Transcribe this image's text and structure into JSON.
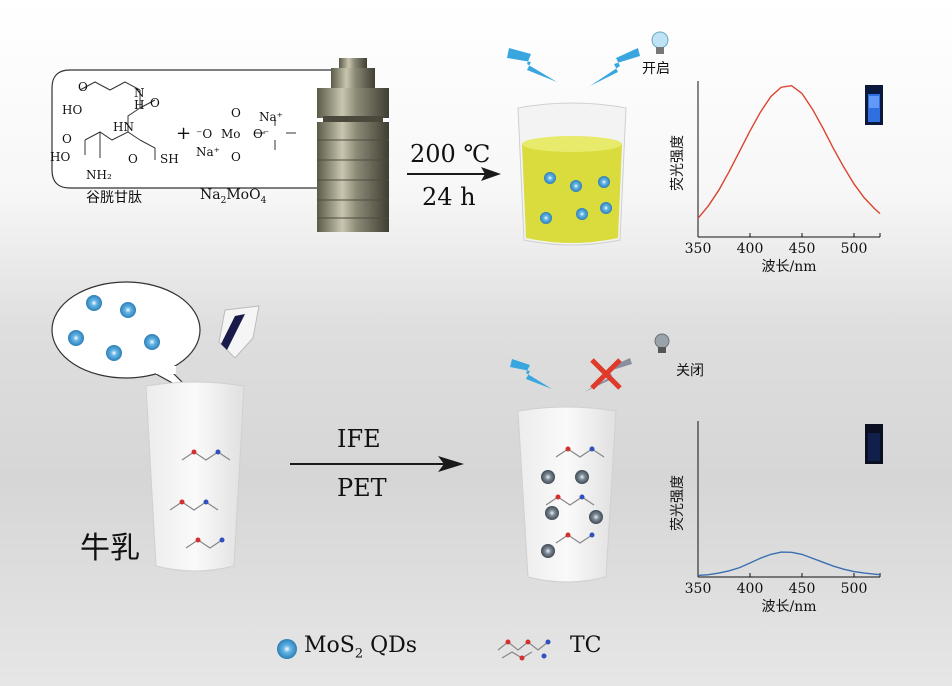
{
  "reaction": {
    "peptide_name": "谷胱甘肽",
    "salt_name": "Na2MoO4",
    "salt_name_main": "Na",
    "salt_sub1": "2",
    "salt_mid": "MoO",
    "salt_sub2": "4",
    "chem_labels": {
      "ho_top": "HO",
      "o_top": "O",
      "n1": "N",
      "h1": "H",
      "o_mid": "O",
      "hn": "HN",
      "ho_bottom": "HO",
      "o_bottom": "O",
      "o_right": "O",
      "sh": "SH",
      "nh2": "NH₂",
      "plus": "+",
      "mo_o1": "⁻O",
      "mo": "Mo",
      "mo_o2": "O⁻",
      "mo_o_top": "O",
      "mo_o_bottom": "O",
      "na_top": "Na⁺",
      "na_bottom": "Na⁺"
    },
    "temperature": "200 ℃",
    "duration": "24 h"
  },
  "top_panel": {
    "lamp_label": "开启"
  },
  "bottom_panel": {
    "lamp_label": "关闭",
    "sample_label": "牛乳",
    "mechanism_1": "IFE",
    "mechanism_2": "PET"
  },
  "legend": {
    "qd_label_main": "MoS",
    "qd_label_sub": "2",
    "qd_label_tail": " QDs",
    "tc_label": "TC"
  },
  "chart_data": [
    {
      "type": "line",
      "ylabel": "荧光强度",
      "xlabel": "波长/nm",
      "xticks": [
        "350",
        "400",
        "450",
        "500"
      ],
      "xlim": [
        350,
        525
      ],
      "ylim": [
        0,
        1
      ],
      "series": [
        {
          "color": "#d9442f",
          "x": [
            350,
            360,
            370,
            380,
            390,
            400,
            410,
            420,
            430,
            440,
            450,
            460,
            470,
            480,
            490,
            500,
            510,
            520,
            525
          ],
          "y": [
            0.12,
            0.2,
            0.3,
            0.42,
            0.55,
            0.68,
            0.8,
            0.9,
            0.96,
            0.97,
            0.92,
            0.82,
            0.7,
            0.57,
            0.45,
            0.34,
            0.25,
            0.18,
            0.15
          ]
        }
      ]
    },
    {
      "type": "line",
      "ylabel": "荧光强度",
      "xlabel": "波长/nm",
      "xticks": [
        "350",
        "400",
        "450",
        "500"
      ],
      "xlim": [
        350,
        525
      ],
      "ylim": [
        0,
        1
      ],
      "series": [
        {
          "color": "#3a6fb0",
          "x": [
            350,
            360,
            370,
            380,
            390,
            400,
            410,
            420,
            430,
            440,
            450,
            460,
            470,
            480,
            490,
            500,
            510,
            520,
            525
          ],
          "y": [
            0.01,
            0.015,
            0.025,
            0.04,
            0.06,
            0.09,
            0.12,
            0.145,
            0.16,
            0.158,
            0.145,
            0.12,
            0.095,
            0.07,
            0.05,
            0.035,
            0.025,
            0.018,
            0.015
          ]
        }
      ]
    }
  ],
  "colors": {
    "qd_blue": "#66b6e6",
    "arrow": "#1a1a1a",
    "lightning": "#3aa6e0",
    "cross": "#e03a2a",
    "solution": "#dde04a"
  }
}
